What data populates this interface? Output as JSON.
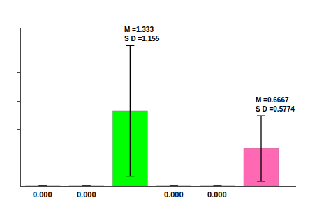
{
  "chart_data": {
    "type": "bar",
    "categories": [
      null,
      null,
      null,
      null,
      null,
      null
    ],
    "values": [
      0.0,
      0.0,
      1.333,
      0.0,
      0.0,
      0.6667
    ],
    "value_labels": [
      "0.000",
      "0.000",
      null,
      "0.000",
      "0.000",
      null
    ],
    "errors": [
      0.0,
      0.0,
      1.155,
      0.0,
      0.0,
      0.5774
    ],
    "colors": [
      "white",
      "white",
      "#00ff00",
      "white",
      "white",
      "#ff69b4"
    ],
    "annotations": [
      {
        "x": 2,
        "y": 2.488,
        "texts": [
          "M =1.333",
          "S D =1.155"
        ]
      },
      {
        "x": 5,
        "y": 1.2441,
        "texts": [
          "M =0.6667",
          "S D =0.5774"
        ]
      }
    ],
    "ylim": [
      0,
      2.8
    ],
    "yticks": [
      0.5,
      1.0,
      1.5,
      2.0
    ],
    "tick_labels": false,
    "grid": false
  }
}
